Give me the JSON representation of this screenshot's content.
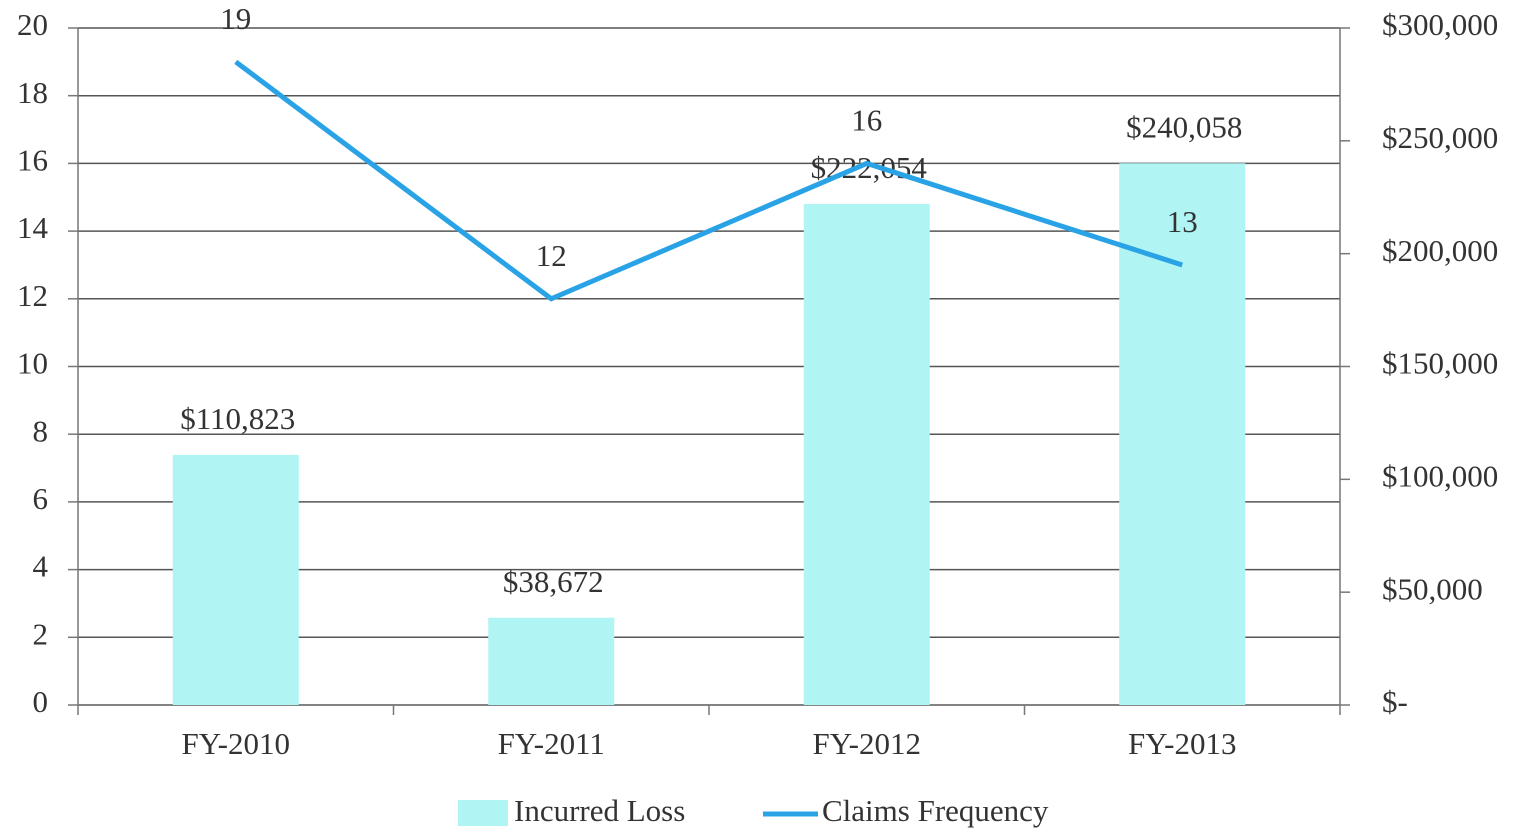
{
  "chart_data": {
    "type": "bar",
    "categories": [
      "FY-2010",
      "FY-2011",
      "FY-2012",
      "FY-2013"
    ],
    "series": [
      {
        "name": "Incurred Loss",
        "type": "bar",
        "axis": "y2",
        "color": "#b0f4f4",
        "values": [
          110823,
          38672,
          222054,
          240058
        ],
        "value_labels": [
          "$110,823",
          "$38,672",
          "$222,054",
          "$240,058"
        ]
      },
      {
        "name": "Claims Frequency",
        "type": "line",
        "axis": "y",
        "color": "#2aa3e6",
        "values": [
          19,
          12,
          16,
          13
        ]
      }
    ],
    "ylim": [
      0,
      20
    ],
    "yticks": [
      0,
      2,
      4,
      6,
      8,
      10,
      12,
      14,
      16,
      18,
      20
    ],
    "y2lim": [
      0,
      300000
    ],
    "y2ticks": [
      {
        "value": 0,
        "label": "$-"
      },
      {
        "value": 50000,
        "label": "$50,000"
      },
      {
        "value": 100000,
        "label": "$100,000"
      },
      {
        "value": 150000,
        "label": "$150,000"
      },
      {
        "value": 200000,
        "label": "$200,000"
      },
      {
        "value": 250000,
        "label": "$250,000"
      },
      {
        "value": 300000,
        "label": "$300,000"
      }
    ],
    "grid": true,
    "legend": "bottom"
  }
}
